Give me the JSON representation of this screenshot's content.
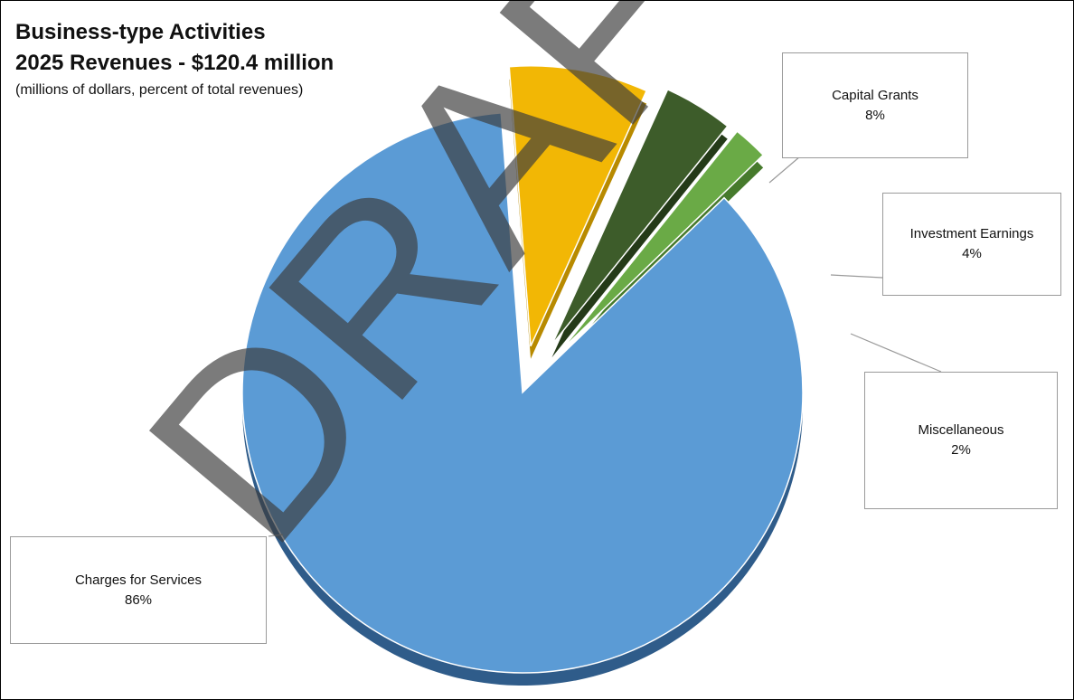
{
  "title": "Business-type Activities",
  "title_line2": "2025 Revenues - $120.4 million",
  "subtitle": "(millions of dollars, percent of total revenues)",
  "watermark": "DRAFT",
  "chart_data": {
    "type": "pie",
    "style": "3d exploded",
    "slices": [
      {
        "label": "Charges for Services",
        "percent_label": "86%",
        "value": 86,
        "color": "#5b9bd5",
        "side_color": "#2f5c8a"
      },
      {
        "label": "Capital Grants",
        "percent_label": "8%",
        "value": 8,
        "color": "#f2b705",
        "side_color": "#b88a00"
      },
      {
        "label": "Investment Earnings",
        "percent_label": "4%",
        "value": 4,
        "color": "#3d5c2a",
        "side_color": "#243a18"
      },
      {
        "label": "Miscellaneous",
        "percent_label": "2%",
        "value": 2,
        "color": "#6aaa46",
        "side_color": "#467a2c"
      }
    ]
  }
}
